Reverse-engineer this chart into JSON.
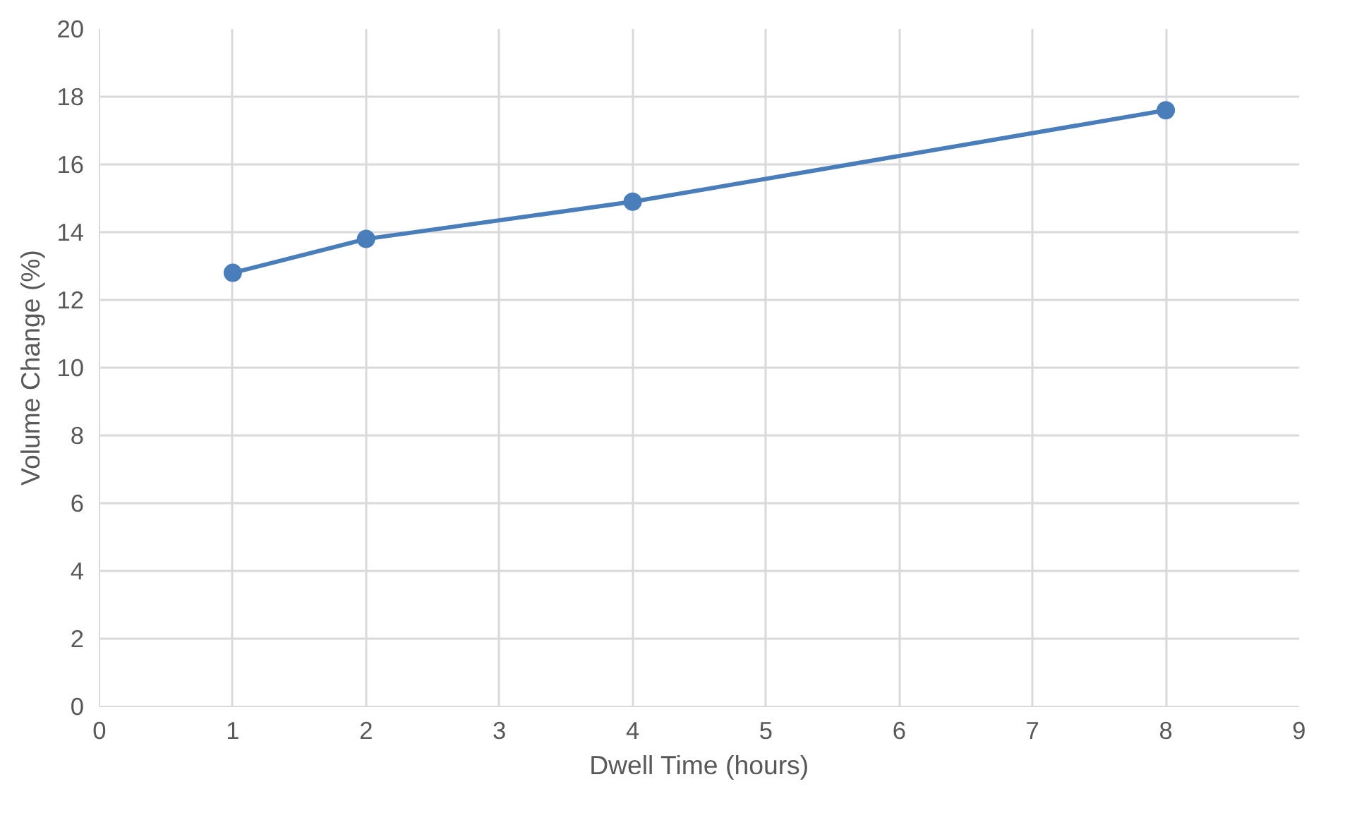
{
  "chart_data": {
    "type": "line",
    "xlabel": "Dwell Time (hours)",
    "ylabel": "Volume Change (%)",
    "x": [
      1,
      2,
      4,
      8
    ],
    "series": [
      {
        "color": "#4a7ebb",
        "values": [
          12.8,
          13.8,
          14.9,
          17.6
        ]
      }
    ],
    "xlim": [
      0,
      9
    ],
    "xticks": [
      0,
      1,
      2,
      3,
      4,
      5,
      6,
      7,
      8,
      9
    ],
    "ylim": [
      0,
      20
    ],
    "yticks": [
      0,
      2,
      4,
      6,
      8,
      10,
      12,
      14,
      16,
      18,
      20
    ],
    "grid": true,
    "marker": "circle",
    "line_style": "solid"
  }
}
